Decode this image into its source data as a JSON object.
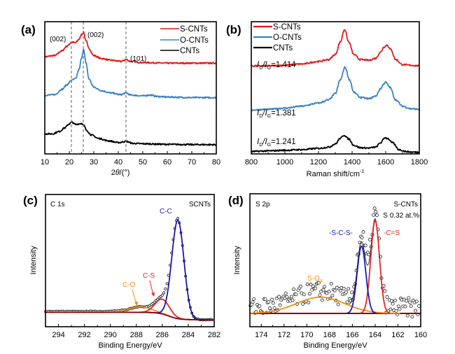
{
  "colors": {
    "red": "#e31a1c",
    "blue": "#3a82c0",
    "black": "#000000",
    "navy": "#1a1aa8",
    "orange": "#f28c0f",
    "crimson": "#e0262a",
    "darkred": "#8b0000"
  },
  "chart_data": [
    {
      "panel": "(a)",
      "type": "line",
      "title": "",
      "xlabel": "2θ/(°)",
      "ylabel": "",
      "xlim": [
        10,
        80
      ],
      "xticks": [
        10,
        20,
        30,
        40,
        50,
        60,
        70,
        80
      ],
      "legend": {
        "placement": "top-right",
        "entries": [
          "S-CNTs",
          "O-CNTs",
          "CNTs"
        ]
      },
      "reference_lines_x": [
        21,
        25.8,
        43.2
      ],
      "annotations": [
        "(002)",
        "(002)",
        "(101)"
      ],
      "series": [
        {
          "name": "S-CNTs",
          "color": "red",
          "x": [
            10,
            14,
            17,
            19,
            21,
            22.5,
            24,
            25,
            25.8,
            26.8,
            28,
            30,
            33,
            37,
            41,
            43.2,
            45,
            50,
            60,
            70,
            80
          ],
          "y": [
            0.79,
            0.8,
            0.84,
            0.88,
            0.915,
            0.91,
            0.94,
            0.98,
            1.0,
            0.93,
            0.86,
            0.8,
            0.775,
            0.76,
            0.75,
            0.765,
            0.75,
            0.74,
            0.735,
            0.735,
            0.735
          ]
        },
        {
          "name": "O-CNTs",
          "color": "blue",
          "x": [
            10,
            14,
            17,
            19,
            21,
            22.5,
            24,
            25,
            25.8,
            26.8,
            28,
            30,
            33,
            37,
            41,
            43.2,
            45,
            50,
            53,
            56,
            60,
            70,
            80
          ],
          "y": [
            0.46,
            0.465,
            0.51,
            0.55,
            0.59,
            0.6,
            0.68,
            0.78,
            0.85,
            0.74,
            0.6,
            0.53,
            0.5,
            0.48,
            0.465,
            0.48,
            0.462,
            0.455,
            0.462,
            0.45,
            0.445,
            0.44,
            0.44
          ]
        },
        {
          "name": "CNTs",
          "color": "black",
          "x": [
            10,
            13,
            16,
            18,
            20,
            21,
            22.5,
            24,
            25,
            26,
            27,
            29,
            32,
            36,
            40,
            43.2,
            46,
            50,
            60,
            70,
            80
          ],
          "y": [
            0.13,
            0.13,
            0.15,
            0.18,
            0.215,
            0.23,
            0.21,
            0.215,
            0.22,
            0.2,
            0.16,
            0.12,
            0.09,
            0.07,
            0.055,
            0.065,
            0.048,
            0.045,
            0.04,
            0.038,
            0.037
          ]
        }
      ]
    },
    {
      "panel": "(b)",
      "type": "line",
      "title": "",
      "xlabel": "Raman shift/cm⁻¹",
      "ylabel": "",
      "xlim": [
        800,
        1800
      ],
      "xticks": [
        800,
        1000,
        1200,
        1400,
        1600,
        1800
      ],
      "legend": {
        "placement": "top-left",
        "entries": [
          "S-CNTs",
          "O-CNTs",
          "CNTs"
        ]
      },
      "annotations": [
        {
          "text": "ID/IG=1.414",
          "series": "S-CNTs"
        },
        {
          "text": "ID/IG=1.381",
          "series": "O-CNTs"
        },
        {
          "text": "ID/IG=1.241",
          "series": "CNTs"
        }
      ],
      "series": [
        {
          "name": "S-CNTs",
          "color": "red",
          "x": [
            800,
            900,
            1000,
            1100,
            1200,
            1260,
            1300,
            1330,
            1355,
            1380,
            1410,
            1450,
            1500,
            1540,
            1570,
            1590,
            1608,
            1630,
            1660,
            1700,
            1750,
            1800
          ],
          "y": [
            0.71,
            0.71,
            0.715,
            0.725,
            0.745,
            0.76,
            0.8,
            0.9,
            1.0,
            0.9,
            0.8,
            0.76,
            0.755,
            0.77,
            0.82,
            0.86,
            0.875,
            0.84,
            0.76,
            0.72,
            0.715,
            0.71
          ]
        },
        {
          "name": "O-CNTs",
          "color": "blue",
          "x": [
            800,
            900,
            1000,
            1100,
            1200,
            1260,
            1300,
            1330,
            1358,
            1385,
            1410,
            1450,
            1500,
            1540,
            1570,
            1590,
            1600,
            1625,
            1660,
            1700,
            1750,
            1800
          ],
          "y": [
            0.36,
            0.365,
            0.375,
            0.39,
            0.415,
            0.44,
            0.49,
            0.6,
            0.7,
            0.6,
            0.5,
            0.46,
            0.45,
            0.47,
            0.53,
            0.57,
            0.58,
            0.54,
            0.44,
            0.39,
            0.37,
            0.365
          ]
        },
        {
          "name": "CNTs",
          "color": "black",
          "x": [
            800,
            900,
            1000,
            1100,
            1200,
            1260,
            1300,
            1330,
            1352,
            1380,
            1410,
            1450,
            1500,
            1540,
            1570,
            1595,
            1610,
            1640,
            1680,
            1720,
            1760,
            1800
          ],
          "y": [
            0.03,
            0.035,
            0.04,
            0.045,
            0.055,
            0.065,
            0.09,
            0.135,
            0.16,
            0.13,
            0.08,
            0.06,
            0.058,
            0.065,
            0.1,
            0.14,
            0.135,
            0.1,
            0.045,
            0.03,
            0.025,
            0.025
          ]
        }
      ]
    },
    {
      "panel": "(c)",
      "type": "line",
      "title": "C 1s",
      "sample": "SCNTs",
      "xlabel": "Binding Energy/eV",
      "ylabel": "Intensity",
      "xlim": [
        295,
        282
      ],
      "xticks": [
        294,
        292,
        290,
        288,
        286,
        284,
        282
      ],
      "components": [
        {
          "name": "C-C",
          "color": "navy",
          "center": 284.8,
          "height": 0.8,
          "fwhm": 1.1
        },
        {
          "name": "C-S",
          "color": "crimson",
          "center": 286.0,
          "height": 0.12,
          "fwhm": 1.3
        },
        {
          "name": "C-O",
          "color": "orange",
          "center": 287.7,
          "height": 0.045,
          "fwhm": 2.0
        }
      ],
      "background": {
        "color": "darkred",
        "from": 0.06,
        "to": 0.0
      },
      "annotations": [
        "C-C",
        "C-S",
        "C-O",
        "C 1s",
        "SCNTs"
      ]
    },
    {
      "panel": "(d)",
      "type": "scatter",
      "title": "S 2p",
      "sample": "S-CNTs",
      "xlabel": "Binding Energy/eV",
      "ylabel": "Intensity",
      "xlim": [
        175,
        160
      ],
      "xticks": [
        174,
        172,
        170,
        168,
        166,
        164,
        162,
        160
      ],
      "components": [
        {
          "name": "-S-C-S-",
          "color": "navy",
          "center": 165.2,
          "height": 0.58,
          "fwhm": 0.9
        },
        {
          "name": "-C=S",
          "color": "crimson",
          "center": 164.0,
          "height": 0.8,
          "fwhm": 0.9
        },
        {
          "name": "S-Ox",
          "color": "orange",
          "center": 168.8,
          "height": 0.14,
          "fwhm": 5.0
        }
      ],
      "background": {
        "color": "darkred",
        "level": 0.0
      },
      "annotations": [
        "S 2p",
        "S-CNTs",
        "S 0.32 at.%",
        "-S-C-S-",
        "-C=S",
        "S-Ox"
      ]
    }
  ],
  "panels": {
    "a": {
      "label": "(a)",
      "xlabel_pre": "2",
      "xlabel_theta": "θ",
      "xlabel_post": "/(°)",
      "ann_002_left": "(002)",
      "ann_002_right": "(002)",
      "ann_101": "(101)",
      "legend": [
        "S-CNTs",
        "O-CNTs",
        "CNTs"
      ],
      "ticks": [
        "10",
        "20",
        "30",
        "40",
        "50",
        "60",
        "70",
        "80"
      ]
    },
    "b": {
      "label": "(b)",
      "xlabel": "Raman shift/cm",
      "xlabel_sup": "-1",
      "legend": [
        "S-CNTs",
        "O-CNTs",
        "CNTs"
      ],
      "ratios": [
        "=1.414",
        "=1.381",
        "=1.241"
      ],
      "I": "I",
      "D": "D",
      "G": "G",
      "slash": "/",
      "ticks": [
        "800",
        "1000",
        "1200",
        "1400",
        "1600",
        "1800"
      ]
    },
    "c": {
      "label": "(c)",
      "title": "C 1s",
      "sample": "SCNTs",
      "xlabel": "Binding Energy/eV",
      "ylabel": "Intensity",
      "peak_cc": "C-C",
      "peak_cs": "C-S",
      "peak_co": "C-O",
      "ticks": [
        "294",
        "292",
        "290",
        "288",
        "286",
        "284",
        "282"
      ]
    },
    "d": {
      "label": "(d)",
      "title": "S 2p",
      "sample": "S-CNTs",
      "content": "S 0.32 at.%",
      "xlabel": "Binding Energy/eV",
      "ylabel": "Intensity",
      "peak_scs": "-S-C-S-",
      "peak_cs": "-C=S",
      "peak_sox": "S-O",
      "peak_sox_sub": "X",
      "ticks": [
        "174",
        "172",
        "170",
        "168",
        "166",
        "164",
        "162",
        "160"
      ]
    }
  }
}
